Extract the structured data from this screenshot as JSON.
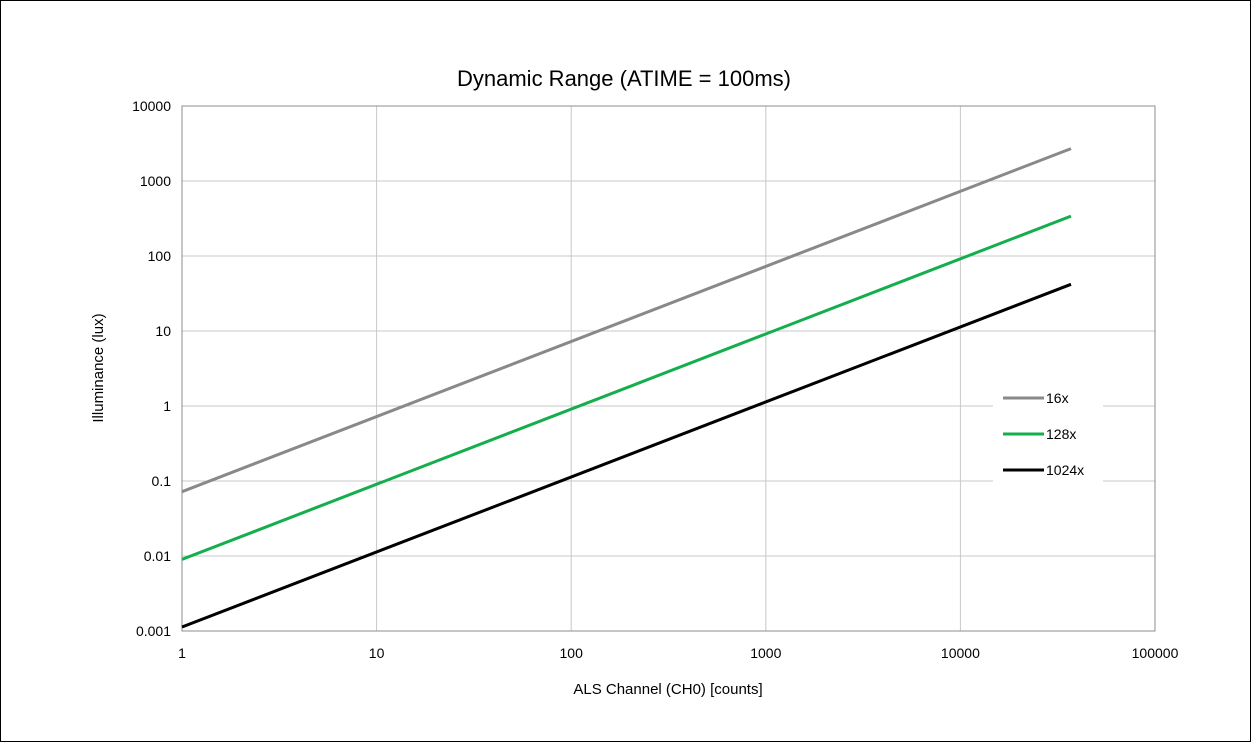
{
  "chart_data": {
    "type": "line",
    "title": "Dynamic Range (ATIME = 100ms)",
    "xlabel": "ALS Channel (CH0) [counts]",
    "ylabel": "Illuminance (lux)",
    "x_scale": "log",
    "y_scale": "log",
    "xlim": [
      1,
      100000
    ],
    "ylim": [
      0.001,
      10000
    ],
    "x_ticks": [
      "1",
      "10",
      "100",
      "1000",
      "10000",
      "100000"
    ],
    "y_ticks": [
      "10000",
      "1000",
      "100",
      "10",
      "1",
      "0.1",
      "0.01",
      "0.001"
    ],
    "grid": true,
    "legend_position": "right",
    "series": [
      {
        "name": "16x",
        "color": "#898989",
        "x": [
          1,
          37000
        ],
        "y": [
          0.072,
          2700
        ]
      },
      {
        "name": "128x",
        "color": "#14ae4c",
        "x": [
          1,
          37000
        ],
        "y": [
          0.009,
          340
        ]
      },
      {
        "name": "1024x",
        "color": "#000000",
        "x": [
          1,
          37000
        ],
        "y": [
          0.00113,
          42
        ]
      }
    ]
  }
}
